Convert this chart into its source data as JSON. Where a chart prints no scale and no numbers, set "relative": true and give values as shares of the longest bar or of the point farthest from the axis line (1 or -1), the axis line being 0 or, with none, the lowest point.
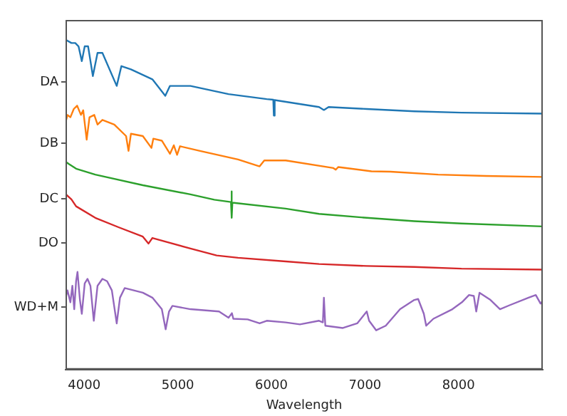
{
  "chart_data": {
    "type": "line",
    "relative": true,
    "xlabel": "Wavelength",
    "xlim": [
      3800,
      8900
    ],
    "xticks": [
      4000,
      5000,
      6000,
      7000,
      8000
    ],
    "grid": false,
    "legend": false,
    "marker": "none",
    "line_style": "solid",
    "series": [
      {
        "name": "DA",
        "color": "#1f77b4",
        "x": [
          3801,
          3863,
          3904,
          3939,
          3974,
          4005,
          4041,
          4092,
          4142,
          4194,
          4347,
          4397,
          4499,
          4728,
          4866,
          4916,
          5135,
          5542,
          5950,
          6020,
          6026,
          6035,
          6509,
          6561,
          6611,
          7019,
          7527,
          8031,
          8900
        ],
        "values": [
          1.0,
          0.99,
          0.99,
          0.98,
          0.935,
          0.98,
          0.98,
          0.89,
          0.96,
          0.96,
          0.86,
          0.92,
          0.91,
          0.88,
          0.83,
          0.86,
          0.86,
          0.835,
          0.82,
          0.818,
          0.77,
          0.817,
          0.796,
          0.787,
          0.796,
          0.79,
          0.783,
          0.779,
          0.776
        ]
      },
      {
        "name": "DB",
        "color": "#ff7f0e",
        "x": [
          3801,
          3821,
          3852,
          3888,
          3924,
          3965,
          3989,
          4026,
          4056,
          4107,
          4142,
          4194,
          4321,
          4447,
          4473,
          4499,
          4626,
          4718,
          4738,
          4829,
          4916,
          4957,
          4992,
          5023,
          5237,
          5644,
          5874,
          5924,
          6153,
          6662,
          6688,
          6714,
          7069,
          7272,
          7782,
          8291,
          8900
        ],
        "values": [
          0.75,
          0.772,
          0.765,
          0.79,
          0.8,
          0.772,
          0.786,
          0.697,
          0.765,
          0.772,
          0.743,
          0.757,
          0.743,
          0.708,
          0.663,
          0.715,
          0.708,
          0.672,
          0.7,
          0.694,
          0.654,
          0.68,
          0.651,
          0.677,
          0.663,
          0.637,
          0.616,
          0.634,
          0.634,
          0.611,
          0.606,
          0.614,
          0.601,
          0.6,
          0.591,
          0.587,
          0.584
        ]
      },
      {
        "name": "DC",
        "color": "#2ca02c",
        "x": [
          3801,
          3836,
          3913,
          4118,
          4626,
          5135,
          5390,
          5568,
          5573,
          5578,
          5583,
          6153,
          6509,
          7019,
          7527,
          8031,
          8900
        ],
        "values": [
          0.63,
          0.623,
          0.609,
          0.591,
          0.559,
          0.531,
          0.515,
          0.508,
          0.54,
          0.46,
          0.506,
          0.488,
          0.472,
          0.46,
          0.45,
          0.443,
          0.434
        ]
      },
      {
        "name": "DO",
        "color": "#d62728",
        "x": [
          3801,
          3863,
          3913,
          4118,
          4371,
          4626,
          4687,
          4728,
          5135,
          5415,
          5644,
          6153,
          6509,
          7019,
          7527,
          8031,
          8900
        ],
        "values": [
          0.532,
          0.516,
          0.495,
          0.46,
          0.431,
          0.403,
          0.382,
          0.399,
          0.367,
          0.346,
          0.339,
          0.328,
          0.32,
          0.314,
          0.311,
          0.306,
          0.303
        ]
      },
      {
        "name": "WD+M",
        "color": "#9467bd",
        "x": [
          3801,
          3821,
          3852,
          3873,
          3893,
          3913,
          3928,
          3954,
          3974,
          4005,
          4035,
          4066,
          4102,
          4142,
          4194,
          4244,
          4295,
          4347,
          4382,
          4432,
          4626,
          4728,
          4829,
          4870,
          4906,
          4942,
          5135,
          5440,
          5542,
          5578,
          5593,
          5746,
          5874,
          5950,
          6153,
          6305,
          6509,
          6550,
          6561,
          6576,
          6764,
          6917,
          7019,
          7044,
          7120,
          7222,
          7375,
          7527,
          7568,
          7629,
          7654,
          7731,
          7934,
          8036,
          8112,
          8163,
          8189,
          8224,
          8341,
          8443,
          8545,
          8748,
          8825,
          8876,
          8900
        ],
        "values": [
          0.218,
          0.24,
          0.204,
          0.254,
          0.183,
          0.268,
          0.296,
          0.211,
          0.169,
          0.261,
          0.275,
          0.254,
          0.148,
          0.254,
          0.275,
          0.268,
          0.24,
          0.14,
          0.218,
          0.247,
          0.233,
          0.218,
          0.183,
          0.122,
          0.176,
          0.193,
          0.183,
          0.176,
          0.157,
          0.171,
          0.154,
          0.152,
          0.14,
          0.148,
          0.143,
          0.137,
          0.148,
          0.143,
          0.218,
          0.133,
          0.126,
          0.14,
          0.176,
          0.148,
          0.119,
          0.133,
          0.183,
          0.211,
          0.214,
          0.169,
          0.133,
          0.154,
          0.183,
          0.204,
          0.226,
          0.223,
          0.176,
          0.233,
          0.211,
          0.183,
          0.195,
          0.218,
          0.226,
          0.2,
          0.209
        ]
      }
    ]
  }
}
